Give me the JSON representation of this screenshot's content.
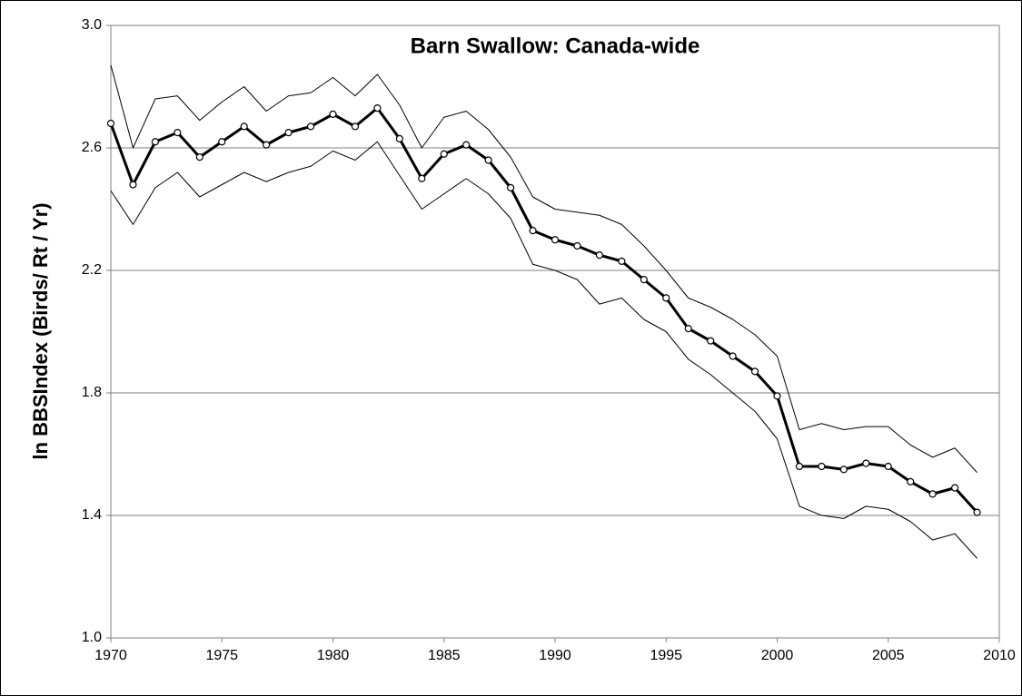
{
  "chart_data": {
    "type": "line",
    "title": "Barn Swallow:  Canada-wide",
    "y_label": "ln BBSIndex (Birds/ Rt / Yr)",
    "x": [
      1970,
      1971,
      1972,
      1973,
      1974,
      1975,
      1976,
      1977,
      1978,
      1979,
      1980,
      1981,
      1982,
      1983,
      1984,
      1985,
      1986,
      1987,
      1988,
      1989,
      1990,
      1991,
      1992,
      1993,
      1994,
      1995,
      1996,
      1997,
      1998,
      1999,
      2000,
      2001,
      2002,
      2003,
      2004,
      2005,
      2006,
      2007,
      2008,
      2009
    ],
    "series": [
      {
        "color": "#000000",
        "width": 1,
        "markers": false,
        "values": [
          2.87,
          2.6,
          2.76,
          2.77,
          2.69,
          2.75,
          2.8,
          2.72,
          2.77,
          2.78,
          2.83,
          2.77,
          2.84,
          2.74,
          2.6,
          2.7,
          2.72,
          2.66,
          2.57,
          2.44,
          2.4,
          2.39,
          2.38,
          2.35,
          2.28,
          2.2,
          2.11,
          2.08,
          2.04,
          1.99,
          1.92,
          1.68,
          1.7,
          1.68,
          1.69,
          1.69,
          1.63,
          1.59,
          1.62,
          1.54
        ]
      },
      {
        "color": "#000000",
        "width": 3,
        "markers": true,
        "values": [
          2.68,
          2.48,
          2.62,
          2.65,
          2.57,
          2.62,
          2.67,
          2.61,
          2.65,
          2.67,
          2.71,
          2.67,
          2.73,
          2.63,
          2.5,
          2.58,
          2.61,
          2.56,
          2.47,
          2.33,
          2.3,
          2.28,
          2.25,
          2.23,
          2.17,
          2.11,
          2.01,
          1.97,
          1.92,
          1.87,
          1.79,
          1.56,
          1.56,
          1.55,
          1.57,
          1.56,
          1.51,
          1.47,
          1.49,
          1.41
        ]
      },
      {
        "color": "#000000",
        "width": 1,
        "markers": false,
        "values": [
          2.46,
          2.35,
          2.47,
          2.52,
          2.44,
          2.48,
          2.52,
          2.49,
          2.52,
          2.54,
          2.59,
          2.56,
          2.62,
          2.51,
          2.4,
          2.45,
          2.5,
          2.45,
          2.37,
          2.22,
          2.2,
          2.17,
          2.09,
          2.11,
          2.04,
          2.0,
          1.91,
          1.86,
          1.8,
          1.74,
          1.65,
          1.43,
          1.4,
          1.39,
          1.43,
          1.42,
          1.38,
          1.32,
          1.34,
          1.26
        ]
      }
    ],
    "xlim": [
      1970,
      2010
    ],
    "xticks": [
      1970,
      1975,
      1980,
      1985,
      1990,
      1995,
      2000,
      2005,
      2010
    ],
    "ylim": [
      1.0,
      3.0
    ],
    "yticks": [
      {
        "value": 1.0,
        "label": "1.0"
      },
      1.4,
      1.8,
      2.2,
      2.6,
      {
        "value": 3.0,
        "label": "3.0"
      }
    ],
    "grid": true
  }
}
